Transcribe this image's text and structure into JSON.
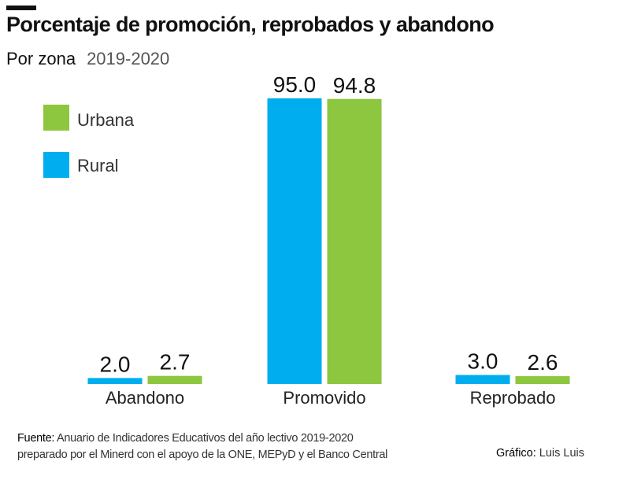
{
  "chart_data": {
    "type": "bar",
    "title": "Porcentaje de promoción, reprobados y abandono",
    "subtitle": "Por zona",
    "period": "2019-2020",
    "categories": [
      "Abandono",
      "Promovido",
      "Reprobado"
    ],
    "series": [
      {
        "name": "Rural",
        "color": "#00aeef",
        "values": [
          2.0,
          95.0,
          3.0
        ]
      },
      {
        "name": "Urbana",
        "color": "#8dc63f",
        "values": [
          2.7,
          94.8,
          2.6
        ]
      }
    ],
    "ylim": [
      0,
      100
    ],
    "grid": false,
    "legend": "top-left"
  },
  "footer": {
    "source_label": "Fuente:",
    "source_line1": "Anuario de Indicadores Educativos del año lectivo 2019-2020",
    "source_line2": "preparado por el Minerd con el apoyo de la  ONE,  MEPyD y el Banco Central",
    "credit_label": "Gráfico:",
    "credit_name": "Luis Luis"
  }
}
